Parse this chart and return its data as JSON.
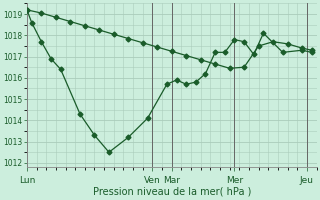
{
  "xlabel": "Pression niveau de la mer( hPa )",
  "bg_color": "#cceedd",
  "grid_color": "#aaccbb",
  "line_color": "#1a5c2a",
  "ylim": [
    1011.8,
    1019.5
  ],
  "yticks": [
    1012,
    1013,
    1014,
    1015,
    1016,
    1017,
    1018,
    1019
  ],
  "day_labels": [
    "Lun",
    "Ven",
    "Mar",
    "Mer",
    "Jeu"
  ],
  "day_x": [
    0,
    13,
    15,
    21.5,
    29
  ],
  "xlim": [
    0,
    30
  ],
  "series1_x": [
    0,
    0.5,
    1.5,
    2.5,
    3.5,
    5.5,
    7.0,
    8.5,
    10.5,
    12.5,
    14.5,
    15.5,
    16.5,
    17.5,
    18.5,
    19.5,
    20.5,
    21.5,
    22.5,
    23.5,
    24.5,
    26.5,
    28.5,
    29.5
  ],
  "series1_y": [
    1019.2,
    1018.6,
    1017.7,
    1016.9,
    1016.4,
    1014.3,
    1013.3,
    1012.5,
    1013.2,
    1014.1,
    1015.7,
    1015.9,
    1015.7,
    1015.8,
    1016.2,
    1017.2,
    1017.2,
    1017.8,
    1017.7,
    1017.1,
    1018.1,
    1017.2,
    1017.3,
    1017.2
  ],
  "series2_x": [
    0,
    1.5,
    3,
    4.5,
    6,
    7.5,
    9,
    10.5,
    12,
    13.5,
    15,
    16.5,
    18,
    19.5,
    21,
    22.5,
    24,
    25.5,
    27,
    28.5,
    29.5
  ],
  "series2_y": [
    1019.2,
    1019.05,
    1018.85,
    1018.65,
    1018.45,
    1018.25,
    1018.05,
    1017.85,
    1017.65,
    1017.45,
    1017.25,
    1017.05,
    1016.85,
    1016.65,
    1016.45,
    1016.5,
    1017.5,
    1017.7,
    1017.6,
    1017.4,
    1017.3
  ]
}
